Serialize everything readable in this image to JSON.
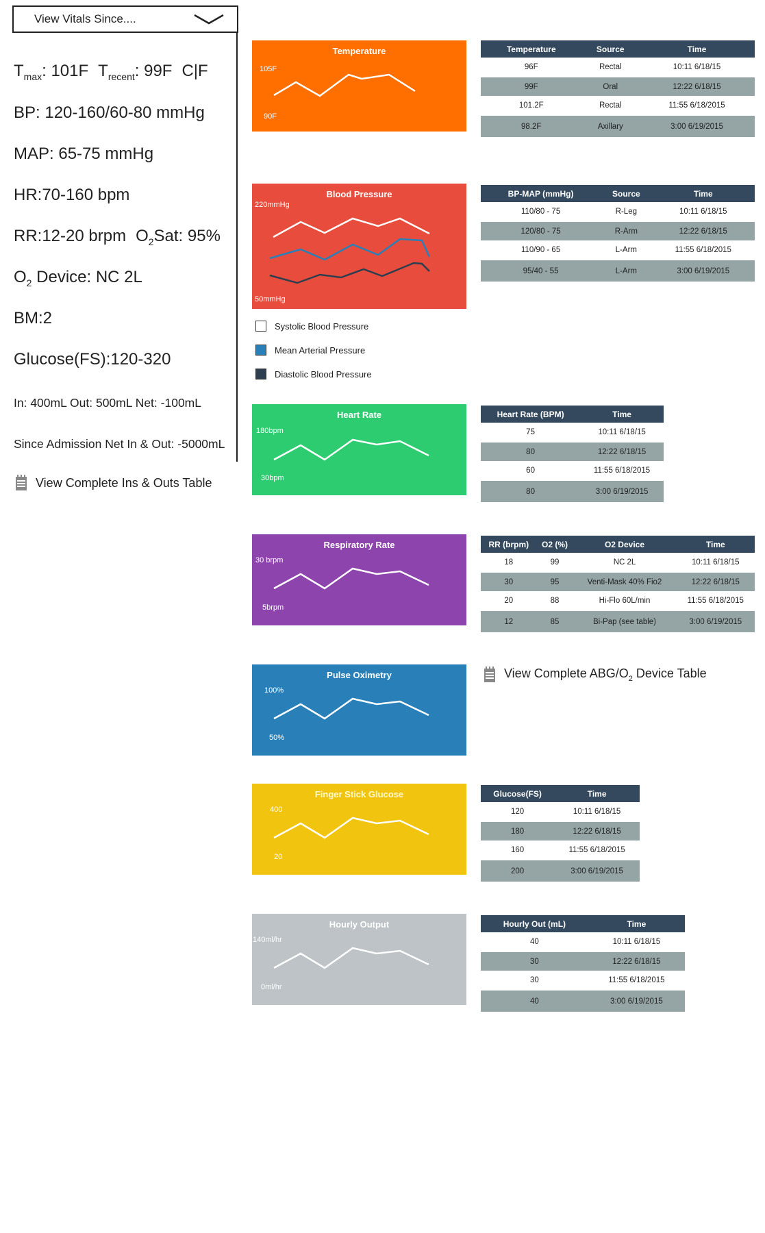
{
  "sidebar": {
    "dropdown_label": "View Vitals Since....",
    "tmax_prefix": "T",
    "tmax_sub": "max",
    "tmax_value": ": 101F",
    "trecent_prefix": "T",
    "trecent_sub": "recent",
    "trecent_value": ": 99F",
    "unit_toggle": "C|F",
    "bp": "BP: 120-160/60-80 mmHg",
    "map": "MAP: 65-75 mmHg",
    "hr": "HR:70-160 bpm",
    "rr": "RR:12-20 brpm",
    "o2sat_prefix": "O",
    "o2sat_sub": "2",
    "o2sat_value": "Sat: 95%",
    "o2device_prefix": "O",
    "o2device_sub": "2",
    "o2device_value": " Device: NC 2L",
    "bm": "BM:2",
    "glucose": "Glucose(FS):120-320",
    "ins_outs": "In: 400mL  Out: 500mL Net: -100mL",
    "since_admission": "Since Admission Net In & Out: -5000mL",
    "ins_outs_link": "View Complete Ins & Outs Table"
  },
  "charts": {
    "temperature": {
      "title": "Temperature",
      "ymax": "105F",
      "ymin": "90F",
      "color": "#ff6f00"
    },
    "blood_pressure": {
      "title": "Blood Pressure",
      "ymax": "220mmHg",
      "ymin": "50mmHg",
      "color": "#e74c3c"
    },
    "heart_rate": {
      "title": "Heart Rate",
      "ymax": "180bpm",
      "ymin": "30bpm",
      "color": "#2ecc71"
    },
    "respiratory_rate": {
      "title": "Respiratory Rate",
      "ymax": "30 brpm",
      "ymin": "5brpm",
      "color": "#8e44ad"
    },
    "pulse_oximetry": {
      "title": "Pulse Oximetry",
      "ymax": "100%",
      "ymin": "50%",
      "color": "#2980b9"
    },
    "glucose": {
      "title": "Finger Stick Glucose",
      "ymax": "400",
      "ymin": "20",
      "color": "#f1c40f"
    },
    "hourly_output": {
      "title": "Hourly Output",
      "ymax": "140ml/hr",
      "ymin": "0ml/hr",
      "color": "#bdc3c7"
    }
  },
  "bp_legend": {
    "systolic": "Systolic Blood Pressure",
    "mean": "Mean Arterial Pressure",
    "diastolic": "Diastolic Blood Pressure",
    "systolic_color": "#ffffff",
    "mean_color": "#2980b9",
    "diastolic_color": "#2c3e50"
  },
  "tables": {
    "temperature": {
      "headers": [
        "Temperature",
        "Source",
        "Time"
      ],
      "rows": [
        [
          "96F",
          "Rectal",
          "10:11 6/18/15"
        ],
        [
          "99F",
          "Oral",
          "12:22 6/18/15"
        ],
        [
          "101.2F",
          "Rectal",
          "11:55 6/18/2015"
        ],
        [
          "98.2F",
          "Axillary",
          "3:00 6/19/2015"
        ]
      ]
    },
    "blood_pressure": {
      "headers": [
        "BP-MAP (mmHg)",
        "Source",
        "Time"
      ],
      "rows": [
        [
          "110/80 - 75",
          "R-Leg",
          "10:11 6/18/15"
        ],
        [
          "120/80 - 75",
          "R-Arm",
          "12:22 6/18/15"
        ],
        [
          "110/90 - 65",
          "L-Arm",
          "11:55 6/18/2015"
        ],
        [
          "95/40 - 55",
          "L-Arm",
          "3:00 6/19/2015"
        ]
      ]
    },
    "heart_rate": {
      "headers": [
        "Heart Rate (BPM)",
        "Time"
      ],
      "rows": [
        [
          "75",
          "10:11 6/18/15"
        ],
        [
          "80",
          "12:22 6/18/15"
        ],
        [
          "60",
          "11:55 6/18/2015"
        ],
        [
          "80",
          "3:00 6/19/2015"
        ]
      ]
    },
    "respiratory": {
      "headers": [
        "RR (brpm)",
        "O2 (%)",
        "O2 Device",
        "Time"
      ],
      "rows": [
        [
          "18",
          "99",
          "NC 2L",
          "10:11 6/18/15"
        ],
        [
          "30",
          "95",
          "Venti-Mask 40% Fio2",
          "12:22 6/18/15"
        ],
        [
          "20",
          "88",
          "Hi-Flo 60L/min",
          "11:55 6/18/2015"
        ],
        [
          "12",
          "85",
          "Bi-Pap (see table)",
          "3:00 6/19/2015"
        ]
      ]
    },
    "glucose": {
      "headers": [
        "Glucose(FS)",
        "Time"
      ],
      "rows": [
        [
          "120",
          "10:11 6/18/15"
        ],
        [
          "180",
          "12:22 6/18/15"
        ],
        [
          "160",
          "11:55 6/18/2015"
        ],
        [
          "200",
          "3:00 6/19/2015"
        ]
      ]
    },
    "hourly_output": {
      "headers": [
        "Hourly Out (mL)",
        "Time"
      ],
      "rows": [
        [
          "40",
          "10:11 6/18/15"
        ],
        [
          "30",
          "12:22 6/18/15"
        ],
        [
          "30",
          "11:55 6/18/2015"
        ],
        [
          "40",
          "3:00 6/19/2015"
        ]
      ]
    }
  },
  "abg_link": {
    "prefix": "View Complete ABG/O",
    "sub": "2",
    "suffix": " Device Table"
  },
  "icons": {
    "dropdown": "chevron-down-icon",
    "table_link": "notepad-icon"
  }
}
